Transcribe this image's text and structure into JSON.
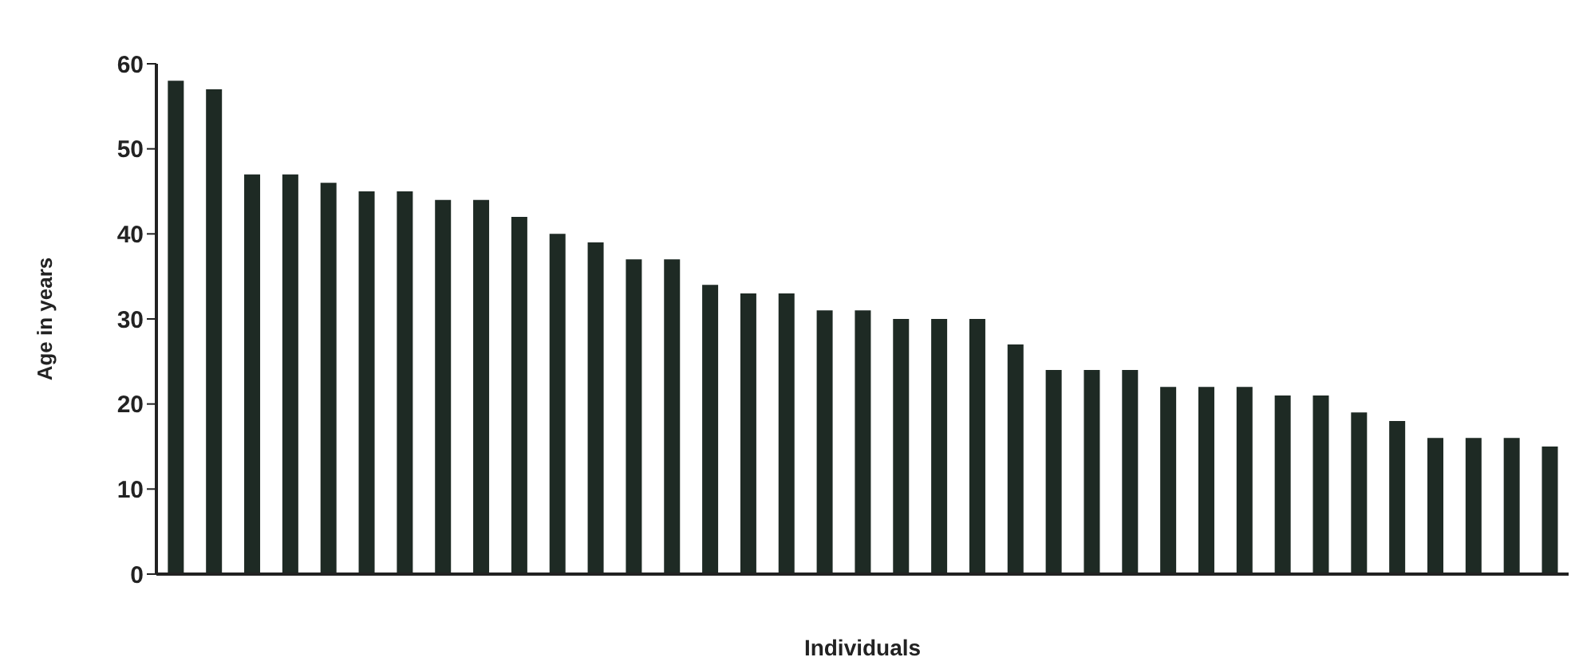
{
  "chart_data": {
    "type": "bar",
    "xlabel": "Individuals",
    "ylabel": "Age in years",
    "categories": [
      null,
      null,
      null,
      null,
      null,
      null,
      null,
      null,
      null,
      null,
      null,
      null,
      null,
      null,
      null,
      null,
      null,
      null,
      null,
      null,
      null,
      null,
      null,
      null,
      null,
      null,
      null,
      null,
      null,
      null,
      null,
      null,
      null,
      null,
      null,
      null,
      null
    ],
    "values": [
      58,
      57,
      47,
      47,
      46,
      45,
      45,
      44,
      44,
      42,
      40,
      39,
      37,
      37,
      34,
      33,
      33,
      31,
      31,
      30,
      30,
      30,
      27,
      24,
      24,
      24,
      22,
      22,
      22,
      21,
      21,
      19,
      18,
      16,
      16,
      16,
      15
    ],
    "color": "#1e2a24",
    "ylim": [
      0,
      60
    ],
    "yticks": [
      0,
      10,
      20,
      30,
      40,
      50,
      60
    ],
    "grid": false,
    "legend": false
  }
}
